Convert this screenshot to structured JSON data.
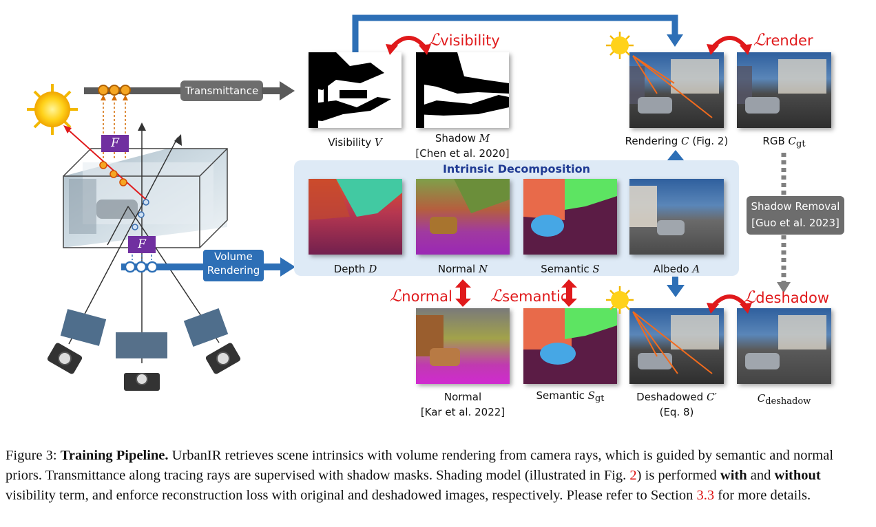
{
  "labels": {
    "transmittance": "Transmittance",
    "volume_rendering": [
      "Volume",
      "Rendering"
    ],
    "f_symbol": "F",
    "intrinsic_decomposition": "Intrinsic Decomposition",
    "visibility": "Visibility",
    "visibility_sym": "V",
    "shadow": "Shadow",
    "shadow_sym": "M",
    "shadow_cite": "[Chen et al. 2020]",
    "rendering": "Rendering",
    "rendering_sym": "C",
    "rendering_ref": "(Fig. 2)",
    "rgb": "RGB",
    "rgb_sym": "C",
    "rgb_sub": "gt",
    "depth": "Depth",
    "depth_sym": "D",
    "normal": "Normal",
    "normal_sym": "N",
    "semantic": "Semantic",
    "semantic_sym": "S",
    "albedo": "Albedo",
    "albedo_sym": "A",
    "shadow_removal": "Shadow Removal",
    "shadow_removal_cite": "[Guo et al. 2023]",
    "normal_prior": "Normal",
    "normal_prior_cite": "[Kar et al. 2022]",
    "semantic_gt": "Semantic",
    "semantic_gt_sym": "S",
    "semantic_gt_sub": "gt",
    "deshadowed": "Deshadowed",
    "deshadowed_sym": "C′",
    "deshadowed_ref": "(Eq. 8)",
    "cdeshadow_sym": "C",
    "cdeshadow_sub": "deshadow"
  },
  "losses": {
    "visibility": "visibility",
    "render": "render",
    "normal": "normal",
    "semantic": "semantic",
    "deshadow": "deshadow",
    "L": "ℒ"
  },
  "caption": {
    "fig": "Figure 3:",
    "title": "Training Pipeline.",
    "p1": " UrbanIR retrieves scene intrinsics with volume rendering from camera rays, which is guided by semantic and normal priors. Transmittance along tracing rays are supervised with shadow masks. Shading model (illustrated in Fig. ",
    "ref1": "2",
    "p2": ") is performed ",
    "with": "with",
    "p3": " and ",
    "without": "without",
    "p4": " visibility term, and enforce reconstruction loss with original and deshadowed images, respectively. Please refer to Section ",
    "ref2": "3.3",
    "p5": " for more details."
  },
  "colors": {
    "loss_red": "#e0191b",
    "arrow_blue": "#2d6fb6",
    "panel_blue": "#deeaf6",
    "grey_tag": "#6d6d6d",
    "f_purple": "#7030a0",
    "sample_orange": "#f5a623"
  }
}
